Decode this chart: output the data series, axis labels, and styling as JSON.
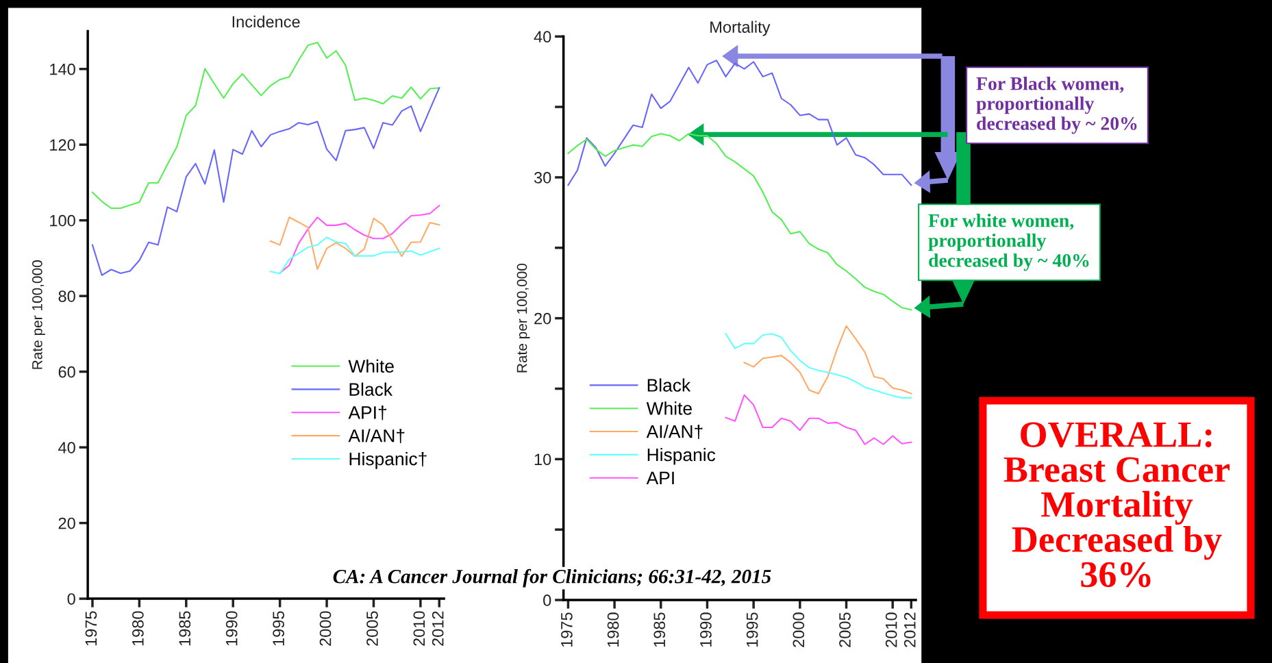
{
  "chart_data": [
    {
      "type": "line",
      "title": "Incidence",
      "ylabel": "Rate per 100,000",
      "xlim": [
        1974.5,
        2012.5
      ],
      "ylim": [
        0,
        150
      ],
      "xticks": [
        1975,
        1980,
        1985,
        1990,
        1995,
        2000,
        2005,
        2010,
        2012
      ],
      "yticks": [
        0,
        20,
        40,
        60,
        80,
        100,
        120,
        140
      ],
      "grid": false,
      "legend": "lower right",
      "line_style": "solid",
      "marker": "none",
      "x": [
        1975,
        1976,
        1977,
        1978,
        1979,
        1980,
        1981,
        1982,
        1983,
        1984,
        1985,
        1986,
        1987,
        1988,
        1989,
        1990,
        1991,
        1992,
        1993,
        1994,
        1995,
        1996,
        1997,
        1998,
        1999,
        2000,
        2001,
        2002,
        2003,
        2004,
        2005,
        2006,
        2007,
        2008,
        2009,
        2010,
        2011,
        2012
      ],
      "series": [
        {
          "name": "White",
          "color": "#55ee55",
          "values": [
            107.4,
            105.0,
            103.2,
            103.2,
            104.0,
            104.8,
            109.9,
            109.9,
            114.8,
            119.4,
            127.7,
            130.3,
            140.1,
            136.1,
            132.3,
            136.1,
            138.7,
            135.8,
            133.0,
            135.6,
            137.2,
            137.9,
            142.3,
            146.3,
            147.0,
            142.9,
            144.8,
            141.0,
            131.7,
            132.3,
            131.7,
            130.8,
            132.9,
            132.3,
            135.2,
            132.1,
            134.8,
            135.0
          ]
        },
        {
          "name": "Black",
          "color": "#6666ff",
          "values": [
            93.5,
            85.5,
            87.0,
            86.0,
            86.6,
            89.4,
            94.2,
            93.5,
            103.5,
            102.3,
            111.5,
            115.0,
            109.6,
            118.6,
            104.8,
            118.7,
            117.5,
            123.7,
            119.5,
            122.6,
            123.5,
            124.2,
            125.8,
            125.3,
            126.1,
            118.8,
            115.8,
            123.7,
            124.0,
            124.5,
            119.0,
            125.8,
            125.2,
            128.9,
            130.2,
            123.5,
            129.3,
            135.0
          ]
        },
        {
          "name": "API†",
          "color": "#ff55ff",
          "x": [
            1995,
            1996,
            1997,
            1998,
            1999,
            2000,
            2001,
            2002,
            2003,
            2004,
            2005,
            2006,
            2007,
            2008,
            2009,
            2010,
            2011,
            2012
          ],
          "values": [
            86.1,
            88.1,
            93.9,
            97.7,
            100.8,
            98.7,
            98.7,
            99.2,
            97.5,
            96.1,
            95.2,
            95.2,
            96.5,
            99.0,
            101.2,
            101.4,
            101.8,
            103.9
          ]
        },
        {
          "name": "AI/AN†",
          "color": "#ffaa66",
          "x": [
            1994,
            1995,
            1996,
            1997,
            1998,
            1999,
            2000,
            2001,
            2002,
            2003,
            2004,
            2005,
            2006,
            2007,
            2008,
            2009,
            2010,
            2011,
            2012
          ],
          "values": [
            94.5,
            93.5,
            100.8,
            99.5,
            98.1,
            87.1,
            92.6,
            94.1,
            92.6,
            90.5,
            92.4,
            100.5,
            98.8,
            94.8,
            90.5,
            94.2,
            94.3,
            99.4,
            98.8
          ]
        },
        {
          "name": "Hispanic†",
          "color": "#66ffff",
          "x": [
            1994,
            1995,
            1996,
            1997,
            1998,
            1999,
            2000,
            2001,
            2002,
            2003,
            2004,
            2005,
            2006,
            2007,
            2008,
            2009,
            2010,
            2011,
            2012
          ],
          "values": [
            86.5,
            85.9,
            89.7,
            91.3,
            92.9,
            93.5,
            95.5,
            94.3,
            93.9,
            90.6,
            90.6,
            90.6,
            91.5,
            91.6,
            91.6,
            91.9,
            90.8,
            91.7,
            92.6
          ]
        }
      ],
      "annotations": [
        "CA: A Cancer Journal for Clinicians; 66:31-42, 2015"
      ]
    },
    {
      "type": "line",
      "title": "Mortality",
      "ylabel": "Rate per 100,000",
      "xlim": [
        1974.5,
        2012.5
      ],
      "ylim": [
        0,
        40
      ],
      "xticks": [
        1975,
        1980,
        1985,
        1990,
        1995,
        2000,
        2005,
        2010,
        2012
      ],
      "yticks": [
        0,
        {
          "value": 5,
          "label": null
        },
        10,
        {
          "value": 15,
          "label": null
        },
        20,
        {
          "value": 25,
          "label": null
        },
        30,
        {
          "value": 35,
          "label": null
        },
        40
      ],
      "grid": false,
      "legend": "lower left",
      "line_style": "solid",
      "marker": "none",
      "x": [
        1975,
        1976,
        1977,
        1978,
        1979,
        1980,
        1981,
        1982,
        1983,
        1984,
        1985,
        1986,
        1987,
        1988,
        1989,
        1990,
        1991,
        1992,
        1993,
        1994,
        1995,
        1996,
        1997,
        1998,
        1999,
        2000,
        2001,
        2002,
        2003,
        2004,
        2005,
        2006,
        2007,
        2008,
        2009,
        2010,
        2011,
        2012
      ],
      "series": [
        {
          "name": "Black",
          "color": "#6666ff",
          "values": [
            29.45,
            30.5,
            32.8,
            32.1,
            30.8,
            31.7,
            32.7,
            33.7,
            33.55,
            35.9,
            34.9,
            35.4,
            36.6,
            37.8,
            36.7,
            38.0,
            38.3,
            37.15,
            38.1,
            37.7,
            38.2,
            37.15,
            37.4,
            35.6,
            35.15,
            34.4,
            34.5,
            34.1,
            34.1,
            32.3,
            32.8,
            31.6,
            31.4,
            30.9,
            30.2,
            30.2,
            30.2,
            29.45
          ]
        },
        {
          "name": "White",
          "color": "#55ee55",
          "values": [
            31.7,
            32.25,
            32.7,
            32.0,
            31.5,
            31.9,
            32.1,
            32.3,
            32.2,
            32.9,
            33.1,
            32.95,
            32.6,
            33.1,
            32.95,
            32.95,
            32.4,
            31.5,
            31.1,
            30.6,
            30.1,
            28.95,
            27.55,
            27.0,
            26.0,
            26.15,
            25.3,
            24.9,
            24.65,
            23.8,
            23.35,
            22.8,
            22.2,
            21.9,
            21.7,
            21.2,
            20.75,
            20.6
          ]
        },
        {
          "name": "AI/AN†",
          "color": "#ffaa66",
          "x": [
            1994,
            1995,
            1996,
            1997,
            1998,
            1999,
            2000,
            2001,
            2002,
            2003,
            2004,
            2005,
            2006,
            2007,
            2008,
            2009,
            2010,
            2011,
            2012
          ],
          "values": [
            16.85,
            16.55,
            17.15,
            17.25,
            17.35,
            16.85,
            16.15,
            14.9,
            14.65,
            15.85,
            17.8,
            19.45,
            18.55,
            17.6,
            15.85,
            15.7,
            15.05,
            14.9,
            14.65
          ]
        },
        {
          "name": "Hispanic",
          "color": "#66ffff",
          "x": [
            1992,
            1993,
            1994,
            1995,
            1996,
            1997,
            1998,
            1999,
            2000,
            2001,
            2002,
            2003,
            2004,
            2005,
            2006,
            2007,
            2008,
            2009,
            2010,
            2011,
            2012
          ],
          "values": [
            18.9,
            17.85,
            18.2,
            18.2,
            18.8,
            18.9,
            18.65,
            17.7,
            17.0,
            16.5,
            16.3,
            16.15,
            16.0,
            15.8,
            15.5,
            15.1,
            14.9,
            14.7,
            14.5,
            14.35,
            14.35
          ]
        },
        {
          "name": "API",
          "color": "#ff55ff",
          "x": [
            1992,
            1993,
            1994,
            1995,
            1996,
            1997,
            1998,
            1999,
            2000,
            2001,
            2002,
            2003,
            2004,
            2005,
            2006,
            2007,
            2008,
            2009,
            2010,
            2011,
            2012
          ],
          "values": [
            12.95,
            12.7,
            14.55,
            13.85,
            12.25,
            12.25,
            12.9,
            12.7,
            12.05,
            12.9,
            12.9,
            12.55,
            12.6,
            12.25,
            12.05,
            11.05,
            11.5,
            11.05,
            11.65,
            11.1,
            11.2
          ]
        }
      ],
      "annotations": [
        "For Black women,\nproportionally\ndecreased by ~ 20%",
        "For white women,\nproportionally\ndecreased by ~ 40%",
        "OVERALL:\nBreast Cancer\nMortality\nDecreased by\n36%"
      ]
    }
  ]
}
